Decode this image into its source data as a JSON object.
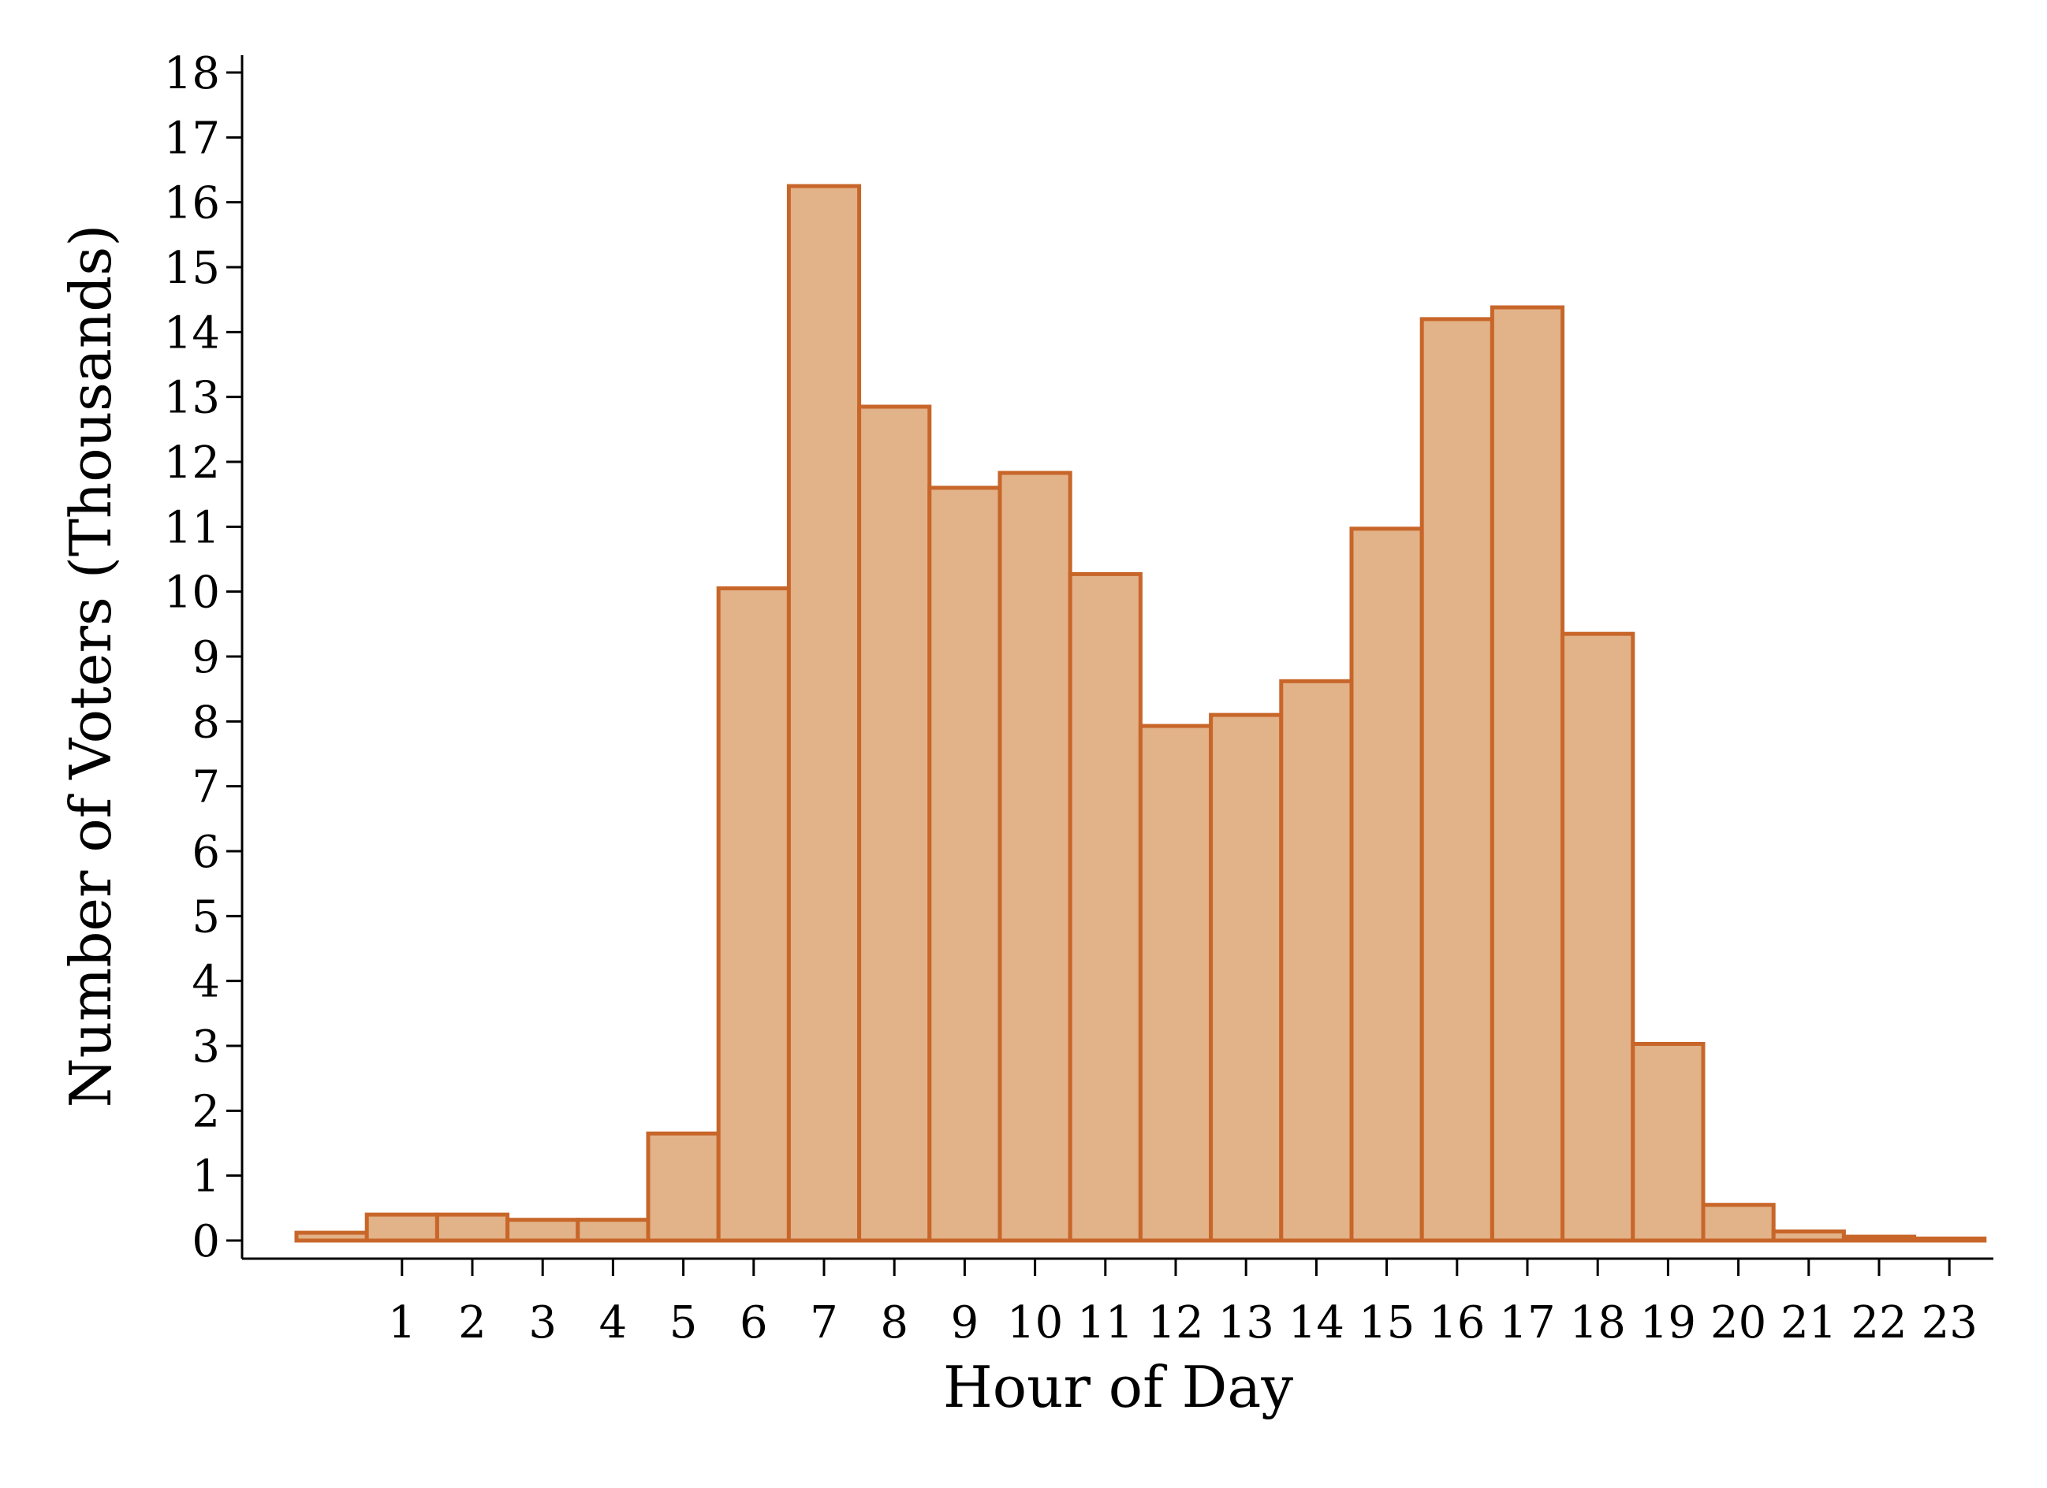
{
  "chart_data": {
    "type": "bar",
    "xlabel": "Hour of Day",
    "ylabel": "Number of Voters (Thousands)",
    "x": [
      0,
      1,
      2,
      3,
      4,
      5,
      6,
      7,
      8,
      9,
      10,
      11,
      12,
      13,
      14,
      15,
      16,
      17,
      18,
      19,
      20,
      21,
      22,
      23
    ],
    "values": [
      0.12,
      0.4,
      0.4,
      0.32,
      0.32,
      1.65,
      10.05,
      16.25,
      12.85,
      11.6,
      11.83,
      10.27,
      7.93,
      8.1,
      8.62,
      10.97,
      14.2,
      14.38,
      9.35,
      3.03,
      0.55,
      0.14,
      0.06,
      0.03
    ],
    "x_tick_labels": [
      "1",
      "2",
      "3",
      "4",
      "5",
      "6",
      "7",
      "8",
      "9",
      "10",
      "11",
      "12",
      "13",
      "14",
      "15",
      "16",
      "17",
      "18",
      "19",
      "20",
      "21",
      "22",
      "23"
    ],
    "y_ticks": [
      "0",
      "1",
      "2",
      "3",
      "4",
      "5",
      "6",
      "7",
      "8",
      "9",
      "10",
      "11",
      "12",
      "13",
      "14",
      "15",
      "16",
      "17",
      "18"
    ],
    "ylim": [
      0,
      18
    ],
    "grid": false,
    "colors": {
      "fill": "#e2b288",
      "stroke": "#c8662a"
    }
  }
}
